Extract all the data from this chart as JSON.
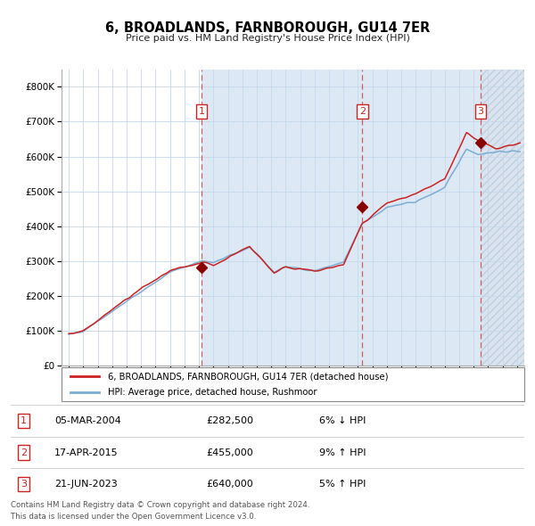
{
  "title": "6, BROADLANDS, FARNBOROUGH, GU14 7ER",
  "subtitle": "Price paid vs. HM Land Registry's House Price Index (HPI)",
  "legend_line1": "6, BROADLANDS, FARNBOROUGH, GU14 7ER (detached house)",
  "legend_line2": "HPI: Average price, detached house, Rushmoor",
  "transactions": [
    {
      "num": 1,
      "date": "05-MAR-2004",
      "price": 282500,
      "pct": "6%",
      "dir": "↓",
      "year_x": 2004.18
    },
    {
      "num": 2,
      "date": "17-APR-2015",
      "price": 455000,
      "pct": "9%",
      "dir": "↑",
      "year_x": 2015.29
    },
    {
      "num": 3,
      "date": "21-JUN-2023",
      "price": 640000,
      "pct": "5%",
      "dir": "↑",
      "year_x": 2023.47
    }
  ],
  "footnote1": "Contains HM Land Registry data © Crown copyright and database right 2024.",
  "footnote2": "This data is licensed under the Open Government Licence v3.0.",
  "hpi_color": "#7aadd4",
  "price_color": "#cc2222",
  "dot_color": "#880000",
  "dashed_color": "#cc4444",
  "bg_color": "#dce9f5",
  "ylim": [
    0,
    850000
  ],
  "xlim_start": 1994.5,
  "xlim_end": 2026.5
}
